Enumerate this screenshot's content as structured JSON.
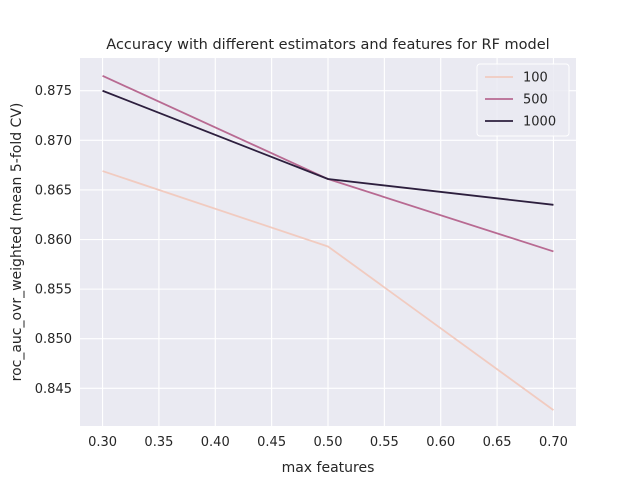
{
  "chart_data": {
    "type": "line",
    "title": "Accuracy with different estimators and features for RF model",
    "xlabel": "max features",
    "ylabel": "roc_auc_ovr_weighted (mean 5-fold CV)",
    "x": [
      0.3,
      0.5,
      0.7
    ],
    "xlim": [
      0.28,
      0.72
    ],
    "ylim": [
      0.8412,
      0.8783
    ],
    "xticks": [
      "0.30",
      "0.35",
      "0.40",
      "0.45",
      "0.50",
      "0.55",
      "0.60",
      "0.65",
      "0.70"
    ],
    "yticks": [
      "0.845",
      "0.850",
      "0.855",
      "0.860",
      "0.865",
      "0.870",
      "0.875"
    ],
    "grid": true,
    "legend_position": "top-right",
    "series": [
      {
        "name": "100",
        "color": "#f1cbc0",
        "values": [
          0.8669,
          0.8593,
          0.8428
        ]
      },
      {
        "name": "500",
        "color": "#b86a92",
        "values": [
          0.8765,
          0.8661,
          0.8588
        ]
      },
      {
        "name": "1000",
        "color": "#2d1f3e",
        "values": [
          0.875,
          0.8661,
          0.8635
        ]
      }
    ]
  }
}
